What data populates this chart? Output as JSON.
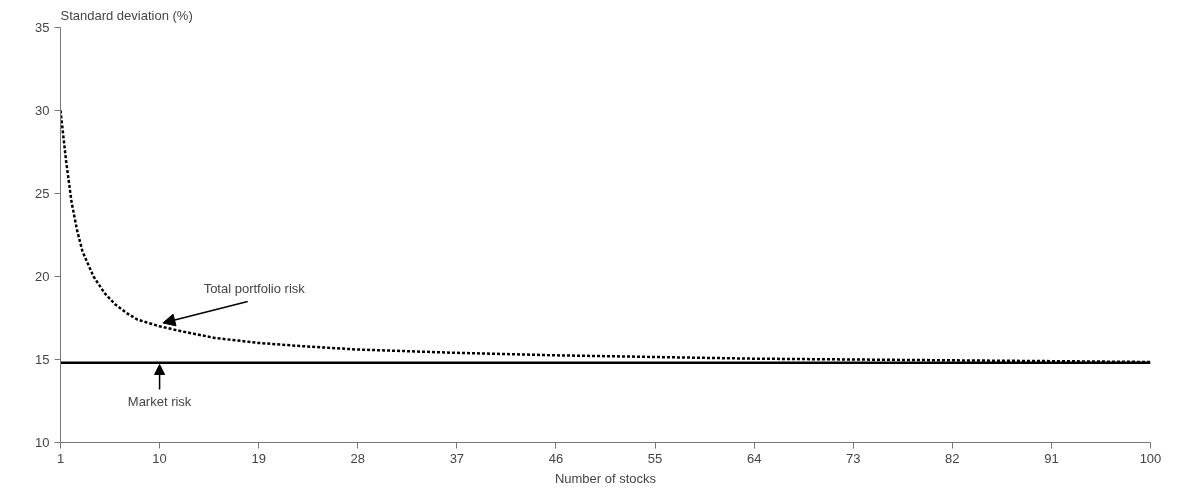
{
  "chart_data": {
    "type": "line",
    "ylabel": "Standard deviation (%)",
    "xlabel": "Number of stocks",
    "xlim": [
      1,
      100
    ],
    "xticks": [
      1,
      10,
      19,
      28,
      37,
      46,
      55,
      64,
      73,
      82,
      91,
      100
    ],
    "ylim": [
      10,
      35
    ],
    "yticks": [
      10,
      15,
      20,
      25,
      30,
      35
    ],
    "grid": false,
    "marker": "none",
    "series": [
      {
        "color": "#000000",
        "line_style": "dotted",
        "x": [
          1,
          1.5,
          2,
          2.5,
          3,
          4,
          5,
          6,
          7,
          8,
          10,
          12,
          15,
          19,
          23,
          28,
          37,
          46,
          55,
          64,
          73,
          82,
          91,
          100
        ],
        "values": [
          30,
          27,
          24.5,
          22.8,
          21.5,
          20,
          19,
          18.3,
          17.8,
          17.4,
          17,
          16.7,
          16.3,
          16.0,
          15.8,
          15.6,
          15.4,
          15.25,
          15.15,
          15.05,
          15.0,
          14.95,
          14.9,
          14.85
        ]
      },
      {
        "color": "#000000",
        "line_style": "solid",
        "x": [
          1,
          100
        ],
        "values": [
          14.8,
          14.8
        ]
      }
    ],
    "annotations": [
      {
        "text": "Total portfolio risk",
        "x": 10,
        "y": 17
      },
      {
        "text": "Market risk",
        "x": 10,
        "y": 14.8
      }
    ]
  }
}
